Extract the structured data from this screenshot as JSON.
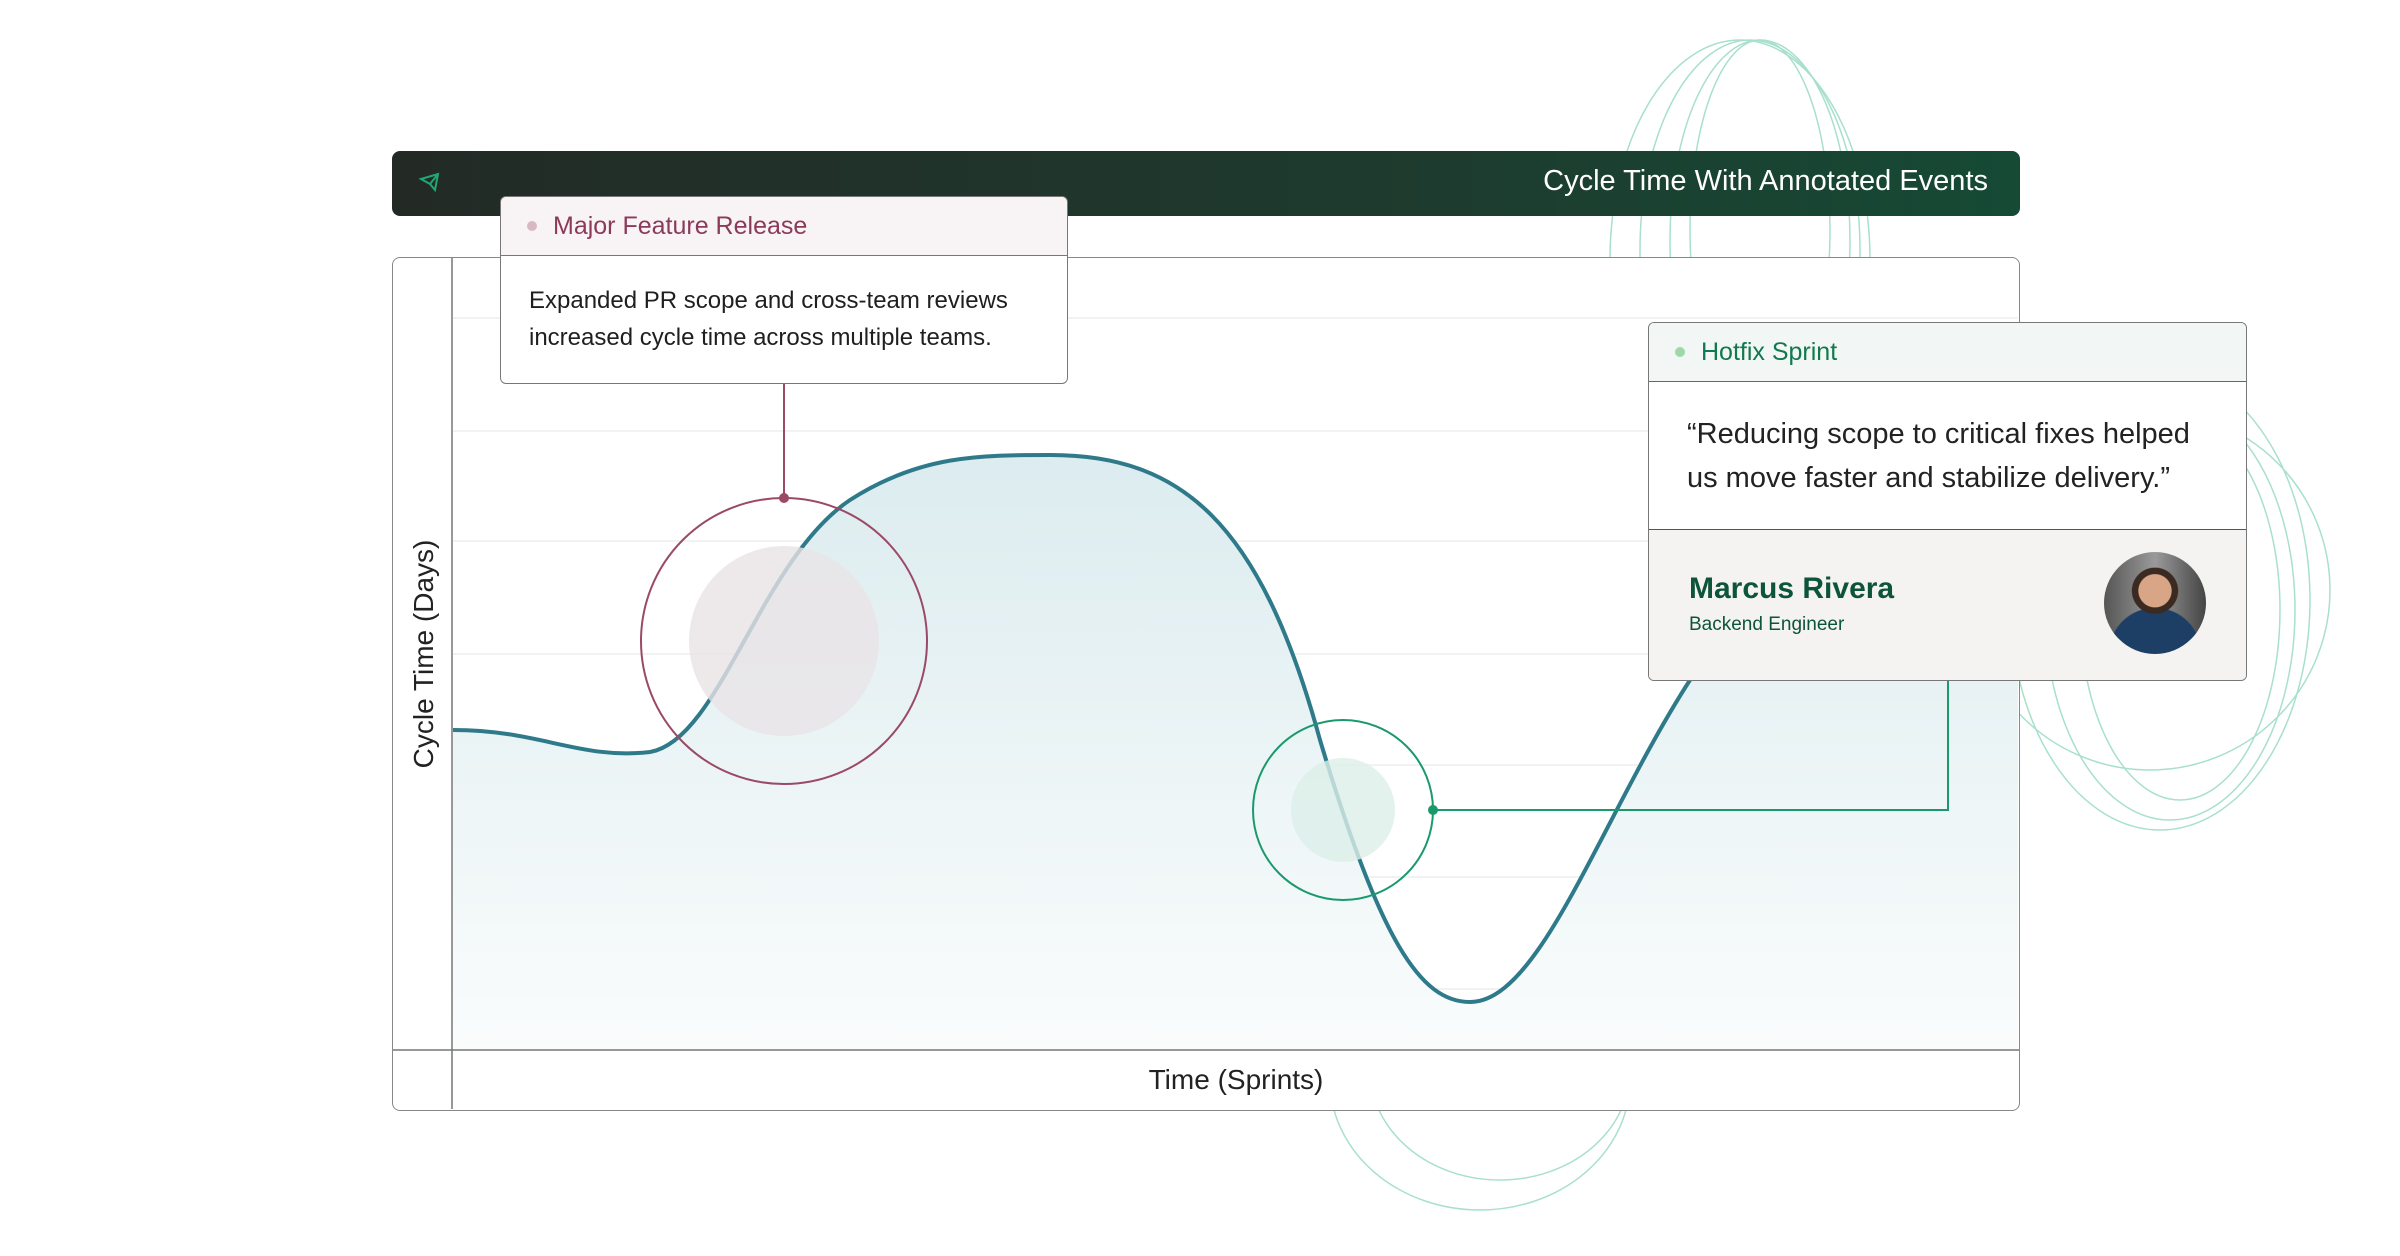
{
  "header": {
    "title": "Cycle Time With Annotated Events",
    "icon": "paper-plane-icon"
  },
  "axes": {
    "y_label": "Cycle Time (Days)",
    "x_label": "Time (Sprints)"
  },
  "events": [
    {
      "title": "Major Feature Release",
      "description": "Expanded PR scope and cross-team reviews increased cycle time across multiple teams.",
      "color": "#8b3a5a",
      "dot_color": "#d8b8c5"
    },
    {
      "title": "Hotfix Sprint",
      "quote": "“Reducing scope to critical fixes helped us move faster and stabilize delivery.”",
      "author": "Marcus Rivera",
      "role": "Backend Engineer",
      "color": "#12784f",
      "dot_color": "#9fd8a8"
    }
  ],
  "colors": {
    "line": "#2e7a8a",
    "accent_green": "#1a9a6a",
    "accent_rose": "#9a4a66"
  }
}
